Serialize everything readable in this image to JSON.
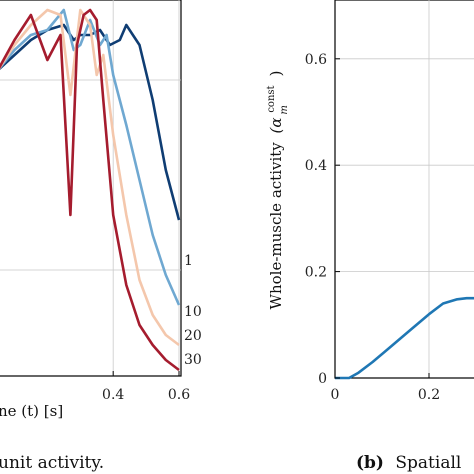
{
  "chart_data": [
    {
      "type": "line",
      "title": "",
      "caption": "unit activity.",
      "xlabel": "ne (t) [s]",
      "ylabel": "",
      "xlim": [
        0.05,
        0.63
      ],
      "x_ticks": [
        "0.4",
        "0.6"
      ],
      "grid": true,
      "series": [
        {
          "name": "1",
          "color": "#0f3d73",
          "x": [
            0.05,
            0.1,
            0.15,
            0.2,
            0.25,
            0.28,
            0.3,
            0.33,
            0.36,
            0.39,
            0.42,
            0.44,
            0.46,
            0.48,
            0.52,
            0.56,
            0.6
          ],
          "y": [
            0.5,
            0.53,
            0.56,
            0.58,
            0.59,
            0.56,
            0.57,
            0.57,
            0.58,
            0.55,
            0.56,
            0.59,
            0.57,
            0.55,
            0.44,
            0.3,
            0.2
          ]
        },
        {
          "name": "10",
          "color": "#6fa8d1",
          "x": [
            0.05,
            0.1,
            0.15,
            0.2,
            0.25,
            0.28,
            0.3,
            0.33,
            0.36,
            0.38,
            0.4,
            0.44,
            0.48,
            0.52,
            0.56,
            0.6
          ],
          "y": [
            0.5,
            0.54,
            0.57,
            0.58,
            0.62,
            0.54,
            0.55,
            0.6,
            0.55,
            0.57,
            0.49,
            0.39,
            0.28,
            0.17,
            0.09,
            0.03
          ]
        },
        {
          "name": "20",
          "color": "#f4c7ac",
          "x": [
            0.05,
            0.1,
            0.15,
            0.2,
            0.24,
            0.27,
            0.3,
            0.33,
            0.35,
            0.37,
            0.4,
            0.44,
            0.48,
            0.52,
            0.56,
            0.6
          ],
          "y": [
            0.5,
            0.55,
            0.59,
            0.62,
            0.61,
            0.45,
            0.62,
            0.59,
            0.49,
            0.53,
            0.37,
            0.21,
            0.08,
            0.01,
            -0.03,
            -0.05
          ]
        },
        {
          "name": "30",
          "color": "#a51c2e",
          "x": [
            0.05,
            0.1,
            0.15,
            0.2,
            0.24,
            0.27,
            0.29,
            0.31,
            0.33,
            0.35,
            0.37,
            0.4,
            0.44,
            0.48,
            0.52,
            0.56,
            0.6
          ],
          "y": [
            0.5,
            0.56,
            0.61,
            0.52,
            0.57,
            0.21,
            0.55,
            0.61,
            0.62,
            0.6,
            0.44,
            0.21,
            0.07,
            -0.01,
            -0.05,
            -0.08,
            -0.1
          ]
        }
      ]
    },
    {
      "type": "line",
      "title": "",
      "caption_label": "(b)",
      "caption": "Spatiall",
      "xlabel": "",
      "ylabel": "Whole-muscle activity",
      "ylabel_math": "(α",
      "ylabel_sup": "const",
      "ylabel_sub": "m",
      "ylabel_close": ")",
      "xlim": [
        0,
        0.4
      ],
      "ylim": [
        0,
        0.7
      ],
      "x_ticks": [
        "0",
        "0.2"
      ],
      "y_ticks": [
        "0",
        "0.2",
        "0.4",
        "0.6"
      ],
      "grid": true,
      "series": [
        {
          "color": "#1f77b4",
          "x": [
            0,
            0.03,
            0.05,
            0.08,
            0.12,
            0.16,
            0.2,
            0.23,
            0.26,
            0.28,
            0.3
          ],
          "y": [
            0,
            0,
            0.01,
            0.03,
            0.06,
            0.09,
            0.12,
            0.14,
            0.148,
            0.15,
            0.15
          ]
        }
      ]
    }
  ]
}
